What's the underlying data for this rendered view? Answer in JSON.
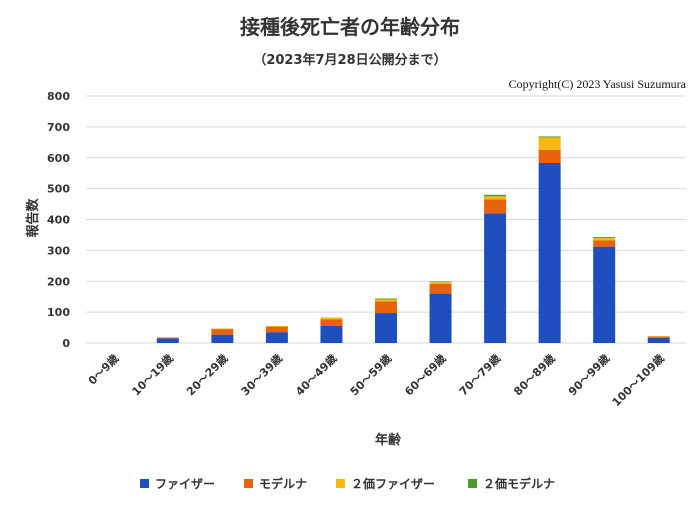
{
  "chart_data": {
    "type": "bar",
    "stacked": true,
    "title": "接種後死亡者の年齢分布",
    "subtitle": "（2023年7月28日公開分まで）",
    "copyright": "Copyright(C)  2023 Yasusi Suzumura",
    "xlabel": "年齢",
    "ylabel": "報告数",
    "ylim": [
      0,
      800
    ],
    "yticks": [
      0,
      100,
      200,
      300,
      400,
      500,
      600,
      700,
      800
    ],
    "grid": true,
    "legend_position": "bottom",
    "categories": [
      "0～9歳",
      "10～19歳",
      "20～29歳",
      "30～39歳",
      "40～49歳",
      "50～59歳",
      "60～69歳",
      "70～79歳",
      "80～89歳",
      "90～99歳",
      "100～109歳"
    ],
    "series": [
      {
        "name": "ファイザー",
        "color": "#1f4fbf",
        "values": [
          0,
          15,
          27,
          35,
          55,
          97,
          160,
          420,
          583,
          312,
          17
        ]
      },
      {
        "name": "モデルナ",
        "color": "#e8620c",
        "values": [
          0,
          3,
          18,
          18,
          22,
          38,
          32,
          45,
          43,
          20,
          4
        ]
      },
      {
        "name": "２価ファイザー",
        "color": "#f7b90f",
        "values": [
          0,
          0,
          2,
          2,
          4,
          6,
          5,
          10,
          40,
          8,
          1
        ]
      },
      {
        "name": "２価モデルナ",
        "color": "#4c9a2a",
        "values": [
          0,
          0,
          0,
          0,
          1,
          3,
          2,
          5,
          3,
          3,
          0
        ]
      }
    ]
  }
}
